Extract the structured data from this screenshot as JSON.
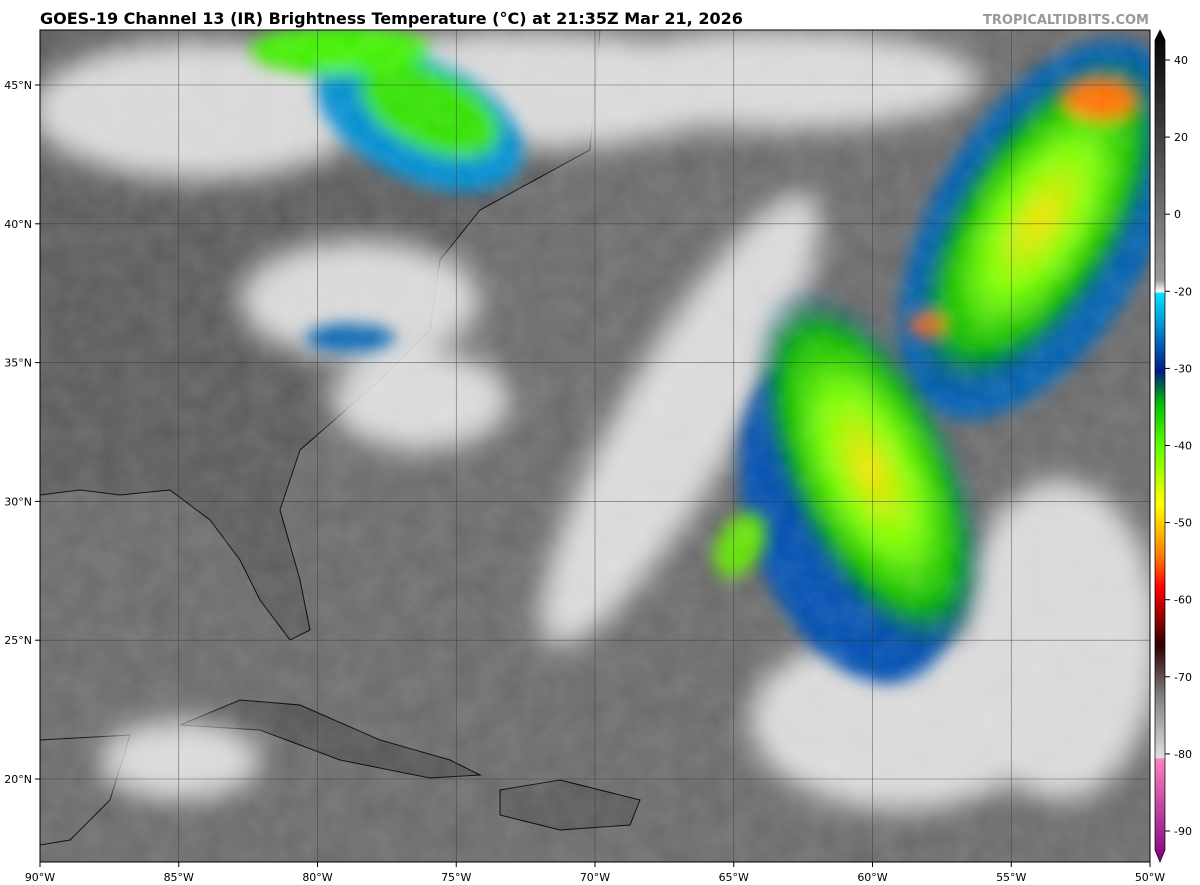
{
  "header": {
    "title": "GOES-19 Channel 13 (IR) Brightness Temperature (°C) at 21:35Z Mar 21, 2026",
    "watermark": "TROPICALTIDBITS.COM"
  },
  "map": {
    "lat_ticks": [
      {
        "value": 45,
        "label": "45°N"
      },
      {
        "value": 40,
        "label": "40°N"
      },
      {
        "value": 35,
        "label": "35°N"
      },
      {
        "value": 30,
        "label": "30°N"
      },
      {
        "value": 25,
        "label": "25°N"
      },
      {
        "value": 20,
        "label": "20°N"
      }
    ],
    "lon_ticks": [
      {
        "value": -90,
        "label": "90°W"
      },
      {
        "value": -85,
        "label": "85°W"
      },
      {
        "value": -80,
        "label": "80°W"
      },
      {
        "value": -75,
        "label": "75°W"
      },
      {
        "value": -70,
        "label": "70°W"
      },
      {
        "value": -65,
        "label": "65°W"
      },
      {
        "value": -60,
        "label": "60°W"
      },
      {
        "value": -55,
        "label": "55°W"
      },
      {
        "value": -50,
        "label": "50°W"
      }
    ]
  },
  "colorbar": {
    "ticks": [
      40,
      20,
      0,
      -20,
      -30,
      -40,
      -50,
      -60,
      -70,
      -80,
      -90
    ]
  }
}
